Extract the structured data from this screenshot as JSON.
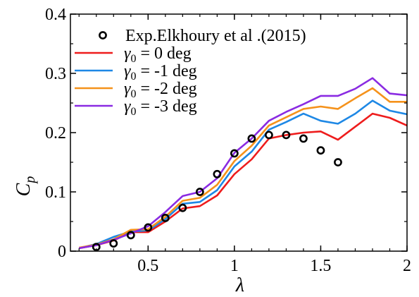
{
  "chart_data": {
    "type": "line",
    "xlabel": "λ",
    "ylabel": "C",
    "ylabel_sub": "p",
    "xlim": [
      0.05,
      2.0
    ],
    "ylim": [
      0,
      0.4
    ],
    "x_ticks": [
      0.5,
      1,
      1.5,
      2
    ],
    "x_tick_labels": [
      "0.5",
      "1",
      "1.5",
      "2"
    ],
    "y_ticks": [
      0,
      0.1,
      0.2,
      0.3,
      0.4
    ],
    "y_tick_labels": [
      "0",
      "0.1",
      "0.2",
      "0.3",
      "0.4"
    ],
    "grid": false,
    "legend_position": "top-left",
    "experiment": {
      "name": "Exp.Elkhoury et al .(2015)",
      "x": [
        0.2,
        0.3,
        0.4,
        0.5,
        0.6,
        0.7,
        0.8,
        0.9,
        1.0,
        1.1,
        1.2,
        1.3,
        1.4,
        1.5,
        1.6
      ],
      "y": [
        0.007,
        0.013,
        0.027,
        0.04,
        0.056,
        0.073,
        0.1,
        0.13,
        0.165,
        0.19,
        0.196,
        0.196,
        0.19,
        0.17,
        0.15
      ],
      "color": "#000000"
    },
    "series": [
      {
        "name_prefix": "γ",
        "name_sub": "0",
        "name_suffix": " = 0 deg",
        "color": "#ee1c1c",
        "x": [
          0.1,
          0.2,
          0.3,
          0.4,
          0.5,
          0.6,
          0.7,
          0.8,
          0.9,
          1.0,
          1.1,
          1.2,
          1.3,
          1.4,
          1.5,
          1.6,
          1.7,
          1.8,
          1.9,
          2.0
        ],
        "y": [
          0.005,
          0.01,
          0.018,
          0.032,
          0.032,
          0.05,
          0.072,
          0.076,
          0.094,
          0.13,
          0.155,
          0.19,
          0.196,
          0.2,
          0.202,
          0.188,
          0.21,
          0.232,
          0.225,
          0.212
        ]
      },
      {
        "name_prefix": "γ",
        "name_sub": "0",
        "name_suffix": " = -1 deg",
        "color": "#1e88e5",
        "x": [
          0.1,
          0.2,
          0.3,
          0.4,
          0.5,
          0.6,
          0.7,
          0.8,
          0.9,
          1.0,
          1.1,
          1.2,
          1.3,
          1.4,
          1.5,
          1.6,
          1.7,
          1.8,
          1.9,
          2.0
        ],
        "y": [
          0.005,
          0.012,
          0.024,
          0.033,
          0.035,
          0.054,
          0.08,
          0.083,
          0.103,
          0.143,
          0.168,
          0.205,
          0.218,
          0.232,
          0.22,
          0.215,
          0.232,
          0.254,
          0.237,
          0.231
        ]
      },
      {
        "name_prefix": "γ",
        "name_sub": "0",
        "name_suffix": " = -2 deg",
        "color": "#f5921b",
        "x": [
          0.1,
          0.2,
          0.3,
          0.4,
          0.5,
          0.6,
          0.7,
          0.8,
          0.9,
          1.0,
          1.1,
          1.2,
          1.3,
          1.4,
          1.5,
          1.6,
          1.7,
          1.8,
          1.9,
          2.0
        ],
        "y": [
          0.006,
          0.011,
          0.02,
          0.036,
          0.037,
          0.058,
          0.085,
          0.09,
          0.112,
          0.152,
          0.178,
          0.212,
          0.226,
          0.24,
          0.244,
          0.24,
          0.258,
          0.275,
          0.252,
          0.252
        ]
      },
      {
        "name_prefix": "γ",
        "name_sub": "0",
        "name_suffix": " = -3 deg",
        "color": "#8a2be2",
        "x": [
          0.1,
          0.2,
          0.3,
          0.4,
          0.5,
          0.6,
          0.7,
          0.8,
          0.9,
          1.0,
          1.1,
          1.2,
          1.3,
          1.4,
          1.5,
          1.6,
          1.7,
          1.8,
          1.9,
          2.0
        ],
        "y": [
          0.005,
          0.01,
          0.019,
          0.03,
          0.042,
          0.066,
          0.093,
          0.1,
          0.123,
          0.166,
          0.19,
          0.22,
          0.235,
          0.248,
          0.262,
          0.262,
          0.274,
          0.292,
          0.266,
          0.263
        ]
      }
    ]
  }
}
